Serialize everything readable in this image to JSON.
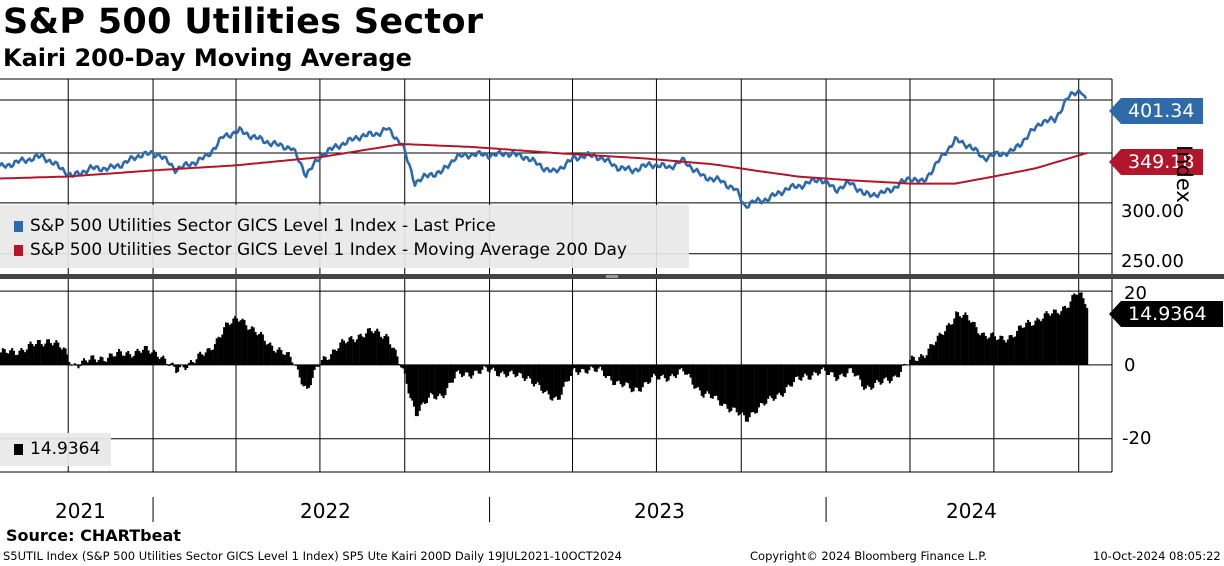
{
  "header": {
    "title": "S&P 500 Utilities Sector",
    "subtitle": "Kairi 200-Day Moving Average"
  },
  "source": "Source: CHARTbeat",
  "footer": {
    "left": "S5UTIL Index (S&P 500 Utilities Sector GICS Level 1 Index) SP5 Ute Kairi 200D  Daily 19JUL2021-10OCT2024",
    "center": "Copyright© 2024 Bloomberg Finance L.P.",
    "right": "10-Oct-2024 08:05:22"
  },
  "chart_data": [
    {
      "type": "line",
      "ylabel": "Index",
      "ylim": [
        230,
        422
      ],
      "yticks": [
        "300.00",
        "250.00"
      ],
      "x_labels": [
        "2021",
        "2022",
        "2023",
        "2024"
      ],
      "x_start": "2021-07-19",
      "x_end": "2024-10-10",
      "legend": [
        "S&P 500 Utilities Sector GICS Level 1 Index - Last Price",
        "S&P 500 Utilities Sector GICS Level 1 Index - Moving Average 200 Day"
      ],
      "grid": true,
      "last_values": [
        "401.34",
        "349.18"
      ],
      "colors": {
        "price": "#2e6aa8",
        "ma": "#b0172c"
      },
      "series": [
        {
          "name": "S&P 500 Utilities Sector GICS Level 1 Index - Last Price",
          "points": [
            [
              "2021-07-19",
              335
            ],
            [
              "2021-08-10",
              341
            ],
            [
              "2021-09-03",
              346
            ],
            [
              "2021-09-25",
              333
            ],
            [
              "2021-10-05",
              326
            ],
            [
              "2021-10-25",
              334
            ],
            [
              "2021-11-15",
              334
            ],
            [
              "2021-11-28",
              338
            ],
            [
              "2021-12-20",
              348
            ],
            [
              "2022-01-08",
              348
            ],
            [
              "2022-01-25",
              333
            ],
            [
              "2022-02-10",
              338
            ],
            [
              "2022-03-01",
              346
            ],
            [
              "2022-03-18",
              365
            ],
            [
              "2022-04-05",
              371
            ],
            [
              "2022-04-20",
              365
            ],
            [
              "2022-05-05",
              360
            ],
            [
              "2022-05-20",
              356
            ],
            [
              "2022-06-01",
              354
            ],
            [
              "2022-06-16",
              328
            ],
            [
              "2022-07-05",
              349
            ],
            [
              "2022-07-25",
              358
            ],
            [
              "2022-08-15",
              366
            ],
            [
              "2022-09-01",
              368
            ],
            [
              "2022-09-12",
              373
            ],
            [
              "2022-09-28",
              358
            ],
            [
              "2022-10-12",
              320
            ],
            [
              "2022-10-28",
              328
            ],
            [
              "2022-11-10",
              330
            ],
            [
              "2022-11-25",
              345
            ],
            [
              "2022-12-15",
              348
            ],
            [
              "2023-01-05",
              347
            ],
            [
              "2023-01-20",
              349
            ],
            [
              "2023-02-10",
              345
            ],
            [
              "2023-02-28",
              335
            ],
            [
              "2023-03-12",
              330
            ],
            [
              "2023-04-01",
              343
            ],
            [
              "2023-04-15",
              347
            ],
            [
              "2023-05-01",
              345
            ],
            [
              "2023-05-20",
              335
            ],
            [
              "2023-06-05",
              332
            ],
            [
              "2023-06-25",
              338
            ],
            [
              "2023-07-15",
              335
            ],
            [
              "2023-07-30",
              342
            ],
            [
              "2023-08-20",
              326
            ],
            [
              "2023-09-08",
              322
            ],
            [
              "2023-09-25",
              313
            ],
            [
              "2023-10-05",
              297
            ],
            [
              "2023-10-15",
              301
            ],
            [
              "2023-10-30",
              304
            ],
            [
              "2023-11-20",
              314
            ],
            [
              "2023-12-08",
              318
            ],
            [
              "2023-12-25",
              324
            ],
            [
              "2024-01-12",
              313
            ],
            [
              "2024-01-28",
              320
            ],
            [
              "2024-02-12",
              308
            ],
            [
              "2024-03-01",
              309
            ],
            [
              "2024-03-15",
              315
            ],
            [
              "2024-04-01",
              325
            ],
            [
              "2024-04-15",
              320
            ],
            [
              "2024-05-01",
              340
            ],
            [
              "2024-05-20",
              362
            ],
            [
              "2024-06-05",
              356
            ],
            [
              "2024-06-20",
              344
            ],
            [
              "2024-07-05",
              348
            ],
            [
              "2024-07-20",
              350
            ],
            [
              "2024-08-05",
              364
            ],
            [
              "2024-08-20",
              379
            ],
            [
              "2024-09-05",
              382
            ],
            [
              "2024-09-20",
              404
            ],
            [
              "2024-09-28",
              410
            ],
            [
              "2024-10-04",
              410
            ],
            [
              "2024-10-10",
              401.34
            ]
          ]
        },
        {
          "name": "S&P 500 Utilities Sector GICS Level 1 Index - Moving Average 200 Day",
          "points": [
            [
              "2021-07-19",
              324
            ],
            [
              "2021-10-01",
              326
            ],
            [
              "2022-01-01",
              332
            ],
            [
              "2022-04-01",
              337
            ],
            [
              "2022-07-01",
              345
            ],
            [
              "2022-09-28",
              358
            ],
            [
              "2022-12-15",
              355
            ],
            [
              "2023-03-15",
              349
            ],
            [
              "2023-06-15",
              344
            ],
            [
              "2023-09-01",
              338
            ],
            [
              "2023-10-15",
              332
            ],
            [
              "2023-12-01",
              326
            ],
            [
              "2024-02-01",
              322
            ],
            [
              "2024-04-01",
              319
            ],
            [
              "2024-05-20",
              319
            ],
            [
              "2024-07-01",
              326
            ],
            [
              "2024-08-15",
              334
            ],
            [
              "2024-10-10",
              349.18
            ]
          ]
        }
      ]
    },
    {
      "type": "bar",
      "ylim": [
        -29,
        23
      ],
      "yticks": [
        "20",
        "0",
        "-20"
      ],
      "last_value": "14.9364",
      "legend": [
        "14.9364"
      ],
      "color": "#000000",
      "series": [
        {
          "name": "14.9364",
          "points": [
            [
              "2021-07-19",
              3
            ],
            [
              "2021-08-15",
              4.5
            ],
            [
              "2021-09-10",
              7
            ],
            [
              "2021-09-25",
              4
            ],
            [
              "2021-10-05",
              0
            ],
            [
              "2021-10-20",
              1
            ],
            [
              "2021-11-05",
              2
            ],
            [
              "2021-11-28",
              3
            ],
            [
              "2021-12-20",
              4
            ],
            [
              "2022-01-08",
              3
            ],
            [
              "2022-01-25",
              -2
            ],
            [
              "2022-02-10",
              1
            ],
            [
              "2022-03-01",
              3.5
            ],
            [
              "2022-03-18",
              10
            ],
            [
              "2022-04-05",
              13
            ],
            [
              "2022-04-20",
              9
            ],
            [
              "2022-05-05",
              6
            ],
            [
              "2022-05-20",
              3.5
            ],
            [
              "2022-06-01",
              1
            ],
            [
              "2022-06-16",
              -7
            ],
            [
              "2022-07-01",
              1
            ],
            [
              "2022-07-20",
              5
            ],
            [
              "2022-08-10",
              8
            ],
            [
              "2022-08-25",
              9
            ],
            [
              "2022-09-12",
              8
            ],
            [
              "2022-09-28",
              -2
            ],
            [
              "2022-10-12",
              -13
            ],
            [
              "2022-10-28",
              -9
            ],
            [
              "2022-11-10",
              -8
            ],
            [
              "2022-11-25",
              -3
            ],
            [
              "2022-12-15",
              -2
            ],
            [
              "2023-01-05",
              -1.5
            ],
            [
              "2023-01-25",
              -3
            ],
            [
              "2023-02-10",
              -3
            ],
            [
              "2023-03-01",
              -8
            ],
            [
              "2023-03-15",
              -9
            ],
            [
              "2023-04-01",
              -2
            ],
            [
              "2023-04-15",
              -1
            ],
            [
              "2023-05-01",
              -2
            ],
            [
              "2023-05-20",
              -5
            ],
            [
              "2023-06-05",
              -7
            ],
            [
              "2023-06-25",
              -4
            ],
            [
              "2023-07-15",
              -3
            ],
            [
              "2023-07-30",
              -2
            ],
            [
              "2023-08-20",
              -8
            ],
            [
              "2023-09-08",
              -10
            ],
            [
              "2023-09-25",
              -13
            ],
            [
              "2023-10-05",
              -15
            ],
            [
              "2023-10-15",
              -12
            ],
            [
              "2023-10-30",
              -10
            ],
            [
              "2023-11-20",
              -6
            ],
            [
              "2023-12-08",
              -3
            ],
            [
              "2023-12-25",
              -2
            ],
            [
              "2024-01-12",
              -3
            ],
            [
              "2024-01-28",
              -2
            ],
            [
              "2024-02-12",
              -6
            ],
            [
              "2024-03-01",
              -5
            ],
            [
              "2024-03-15",
              -3
            ],
            [
              "2024-04-01",
              1
            ],
            [
              "2024-04-15",
              3
            ],
            [
              "2024-05-01",
              7
            ],
            [
              "2024-05-20",
              14
            ],
            [
              "2024-06-05",
              12
            ],
            [
              "2024-06-20",
              8
            ],
            [
              "2024-07-05",
              7
            ],
            [
              "2024-07-20",
              8
            ],
            [
              "2024-08-05",
              11
            ],
            [
              "2024-08-20",
              13
            ],
            [
              "2024-09-05",
              14
            ],
            [
              "2024-09-20",
              17
            ],
            [
              "2024-09-28",
              19.5
            ],
            [
              "2024-10-04",
              18
            ],
            [
              "2024-10-10",
              14.9364
            ]
          ]
        }
      ]
    }
  ]
}
